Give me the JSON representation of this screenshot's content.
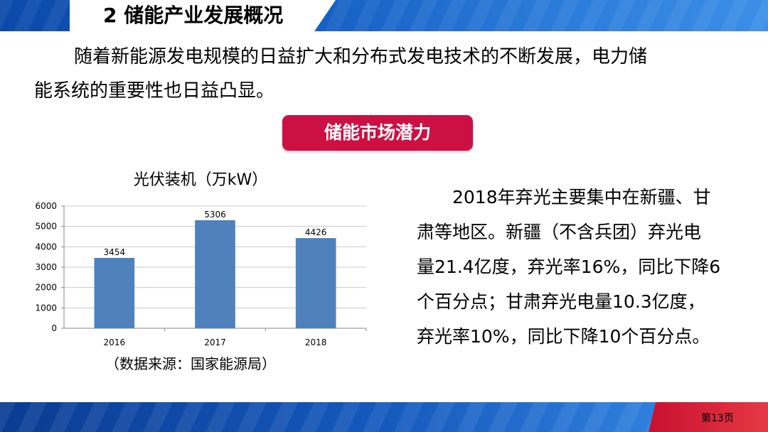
{
  "slide": {
    "title": "2  储能产业发展概况",
    "intro_line1": "随着新能源发电规模的日益扩大和分布式发电技术的不断发展，电力储",
    "intro_line2": "能系统的重要性也日益凸显。",
    "market_button": "储能市场潜力",
    "source_note": "（数据来源：国家能源局）",
    "description_lines": [
      "2018年弃光主要集中在新疆、甘",
      "肃等地区。新疆（不含兵团）弃光电",
      "量21.4亿度，弃光率16%，同比下降6",
      "个百分点；甘肃弃光电量10.3亿度，",
      "弃光率10%，同比下降10个百分点。"
    ],
    "page_number": "第13页"
  },
  "colors": {
    "bar": "#4f81bd",
    "button": "#cc1044",
    "band_blue": "#1763c6",
    "band_red": "#d42035"
  },
  "chart_data": {
    "type": "bar",
    "title": "光伏装机（万kW）",
    "categories": [
      "2016",
      "2017",
      "2018"
    ],
    "values": [
      3454,
      5306,
      4426
    ],
    "data_labels": [
      "3454",
      "5306",
      "4426"
    ],
    "ylim": [
      0,
      6000
    ],
    "yticks": [
      "0",
      "1000",
      "2000",
      "3000",
      "4000",
      "5000",
      "6000"
    ],
    "grid": true,
    "legend": "none"
  }
}
